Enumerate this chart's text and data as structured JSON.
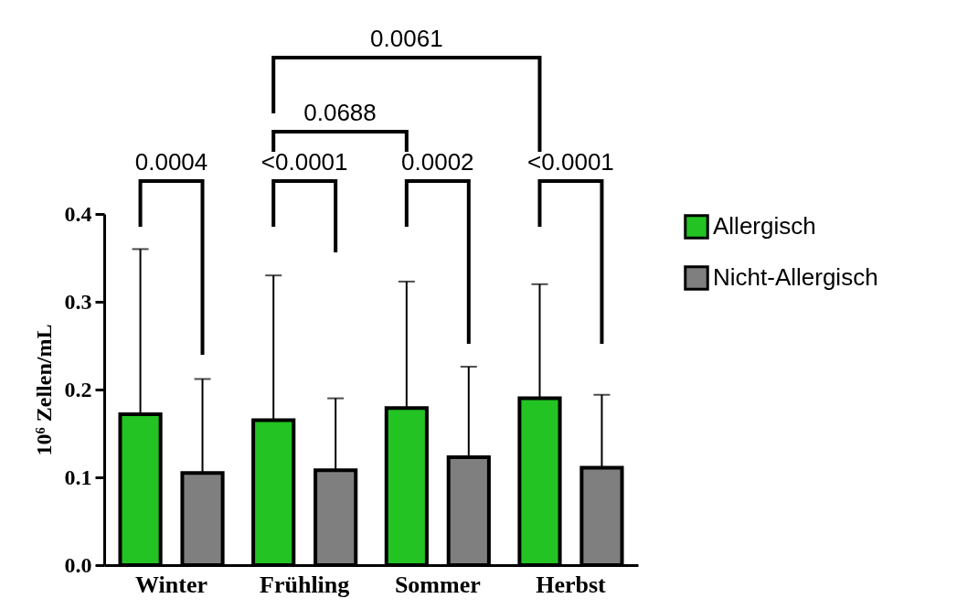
{
  "chart_data": {
    "type": "bar",
    "ylabel": "10⁶ Zellen/mL",
    "categories": [
      "Winter",
      "Frühling",
      "Sommer",
      "Herbst"
    ],
    "series": [
      {
        "name": "Allergisch",
        "color": "#22c322",
        "values": [
          0.172,
          0.165,
          0.179,
          0.19
        ],
        "errors": [
          [
            0.172,
            0.36
          ],
          [
            0.165,
            0.33
          ],
          [
            0.179,
            0.323
          ],
          [
            0.19,
            0.32
          ]
        ]
      },
      {
        "name": "Nicht-Allergisch",
        "color": "#7f7f7f",
        "values": [
          0.105,
          0.108,
          0.123,
          0.111
        ],
        "errors": [
          [
            0.105,
            0.212
          ],
          [
            0.108,
            0.19
          ],
          [
            0.123,
            0.226
          ],
          [
            0.111,
            0.194
          ]
        ]
      }
    ],
    "ylim": [
      0,
      0.4
    ],
    "yticks": [
      {
        "value": 0,
        "label": "0.0"
      },
      0.1,
      0.2,
      0.3,
      0.4
    ],
    "grid": false,
    "legend": "top right",
    "annotations": [
      "0.0004",
      "<0.0001",
      "0.0002",
      "<0.0001",
      "0.0688",
      "0.0061"
    ]
  }
}
